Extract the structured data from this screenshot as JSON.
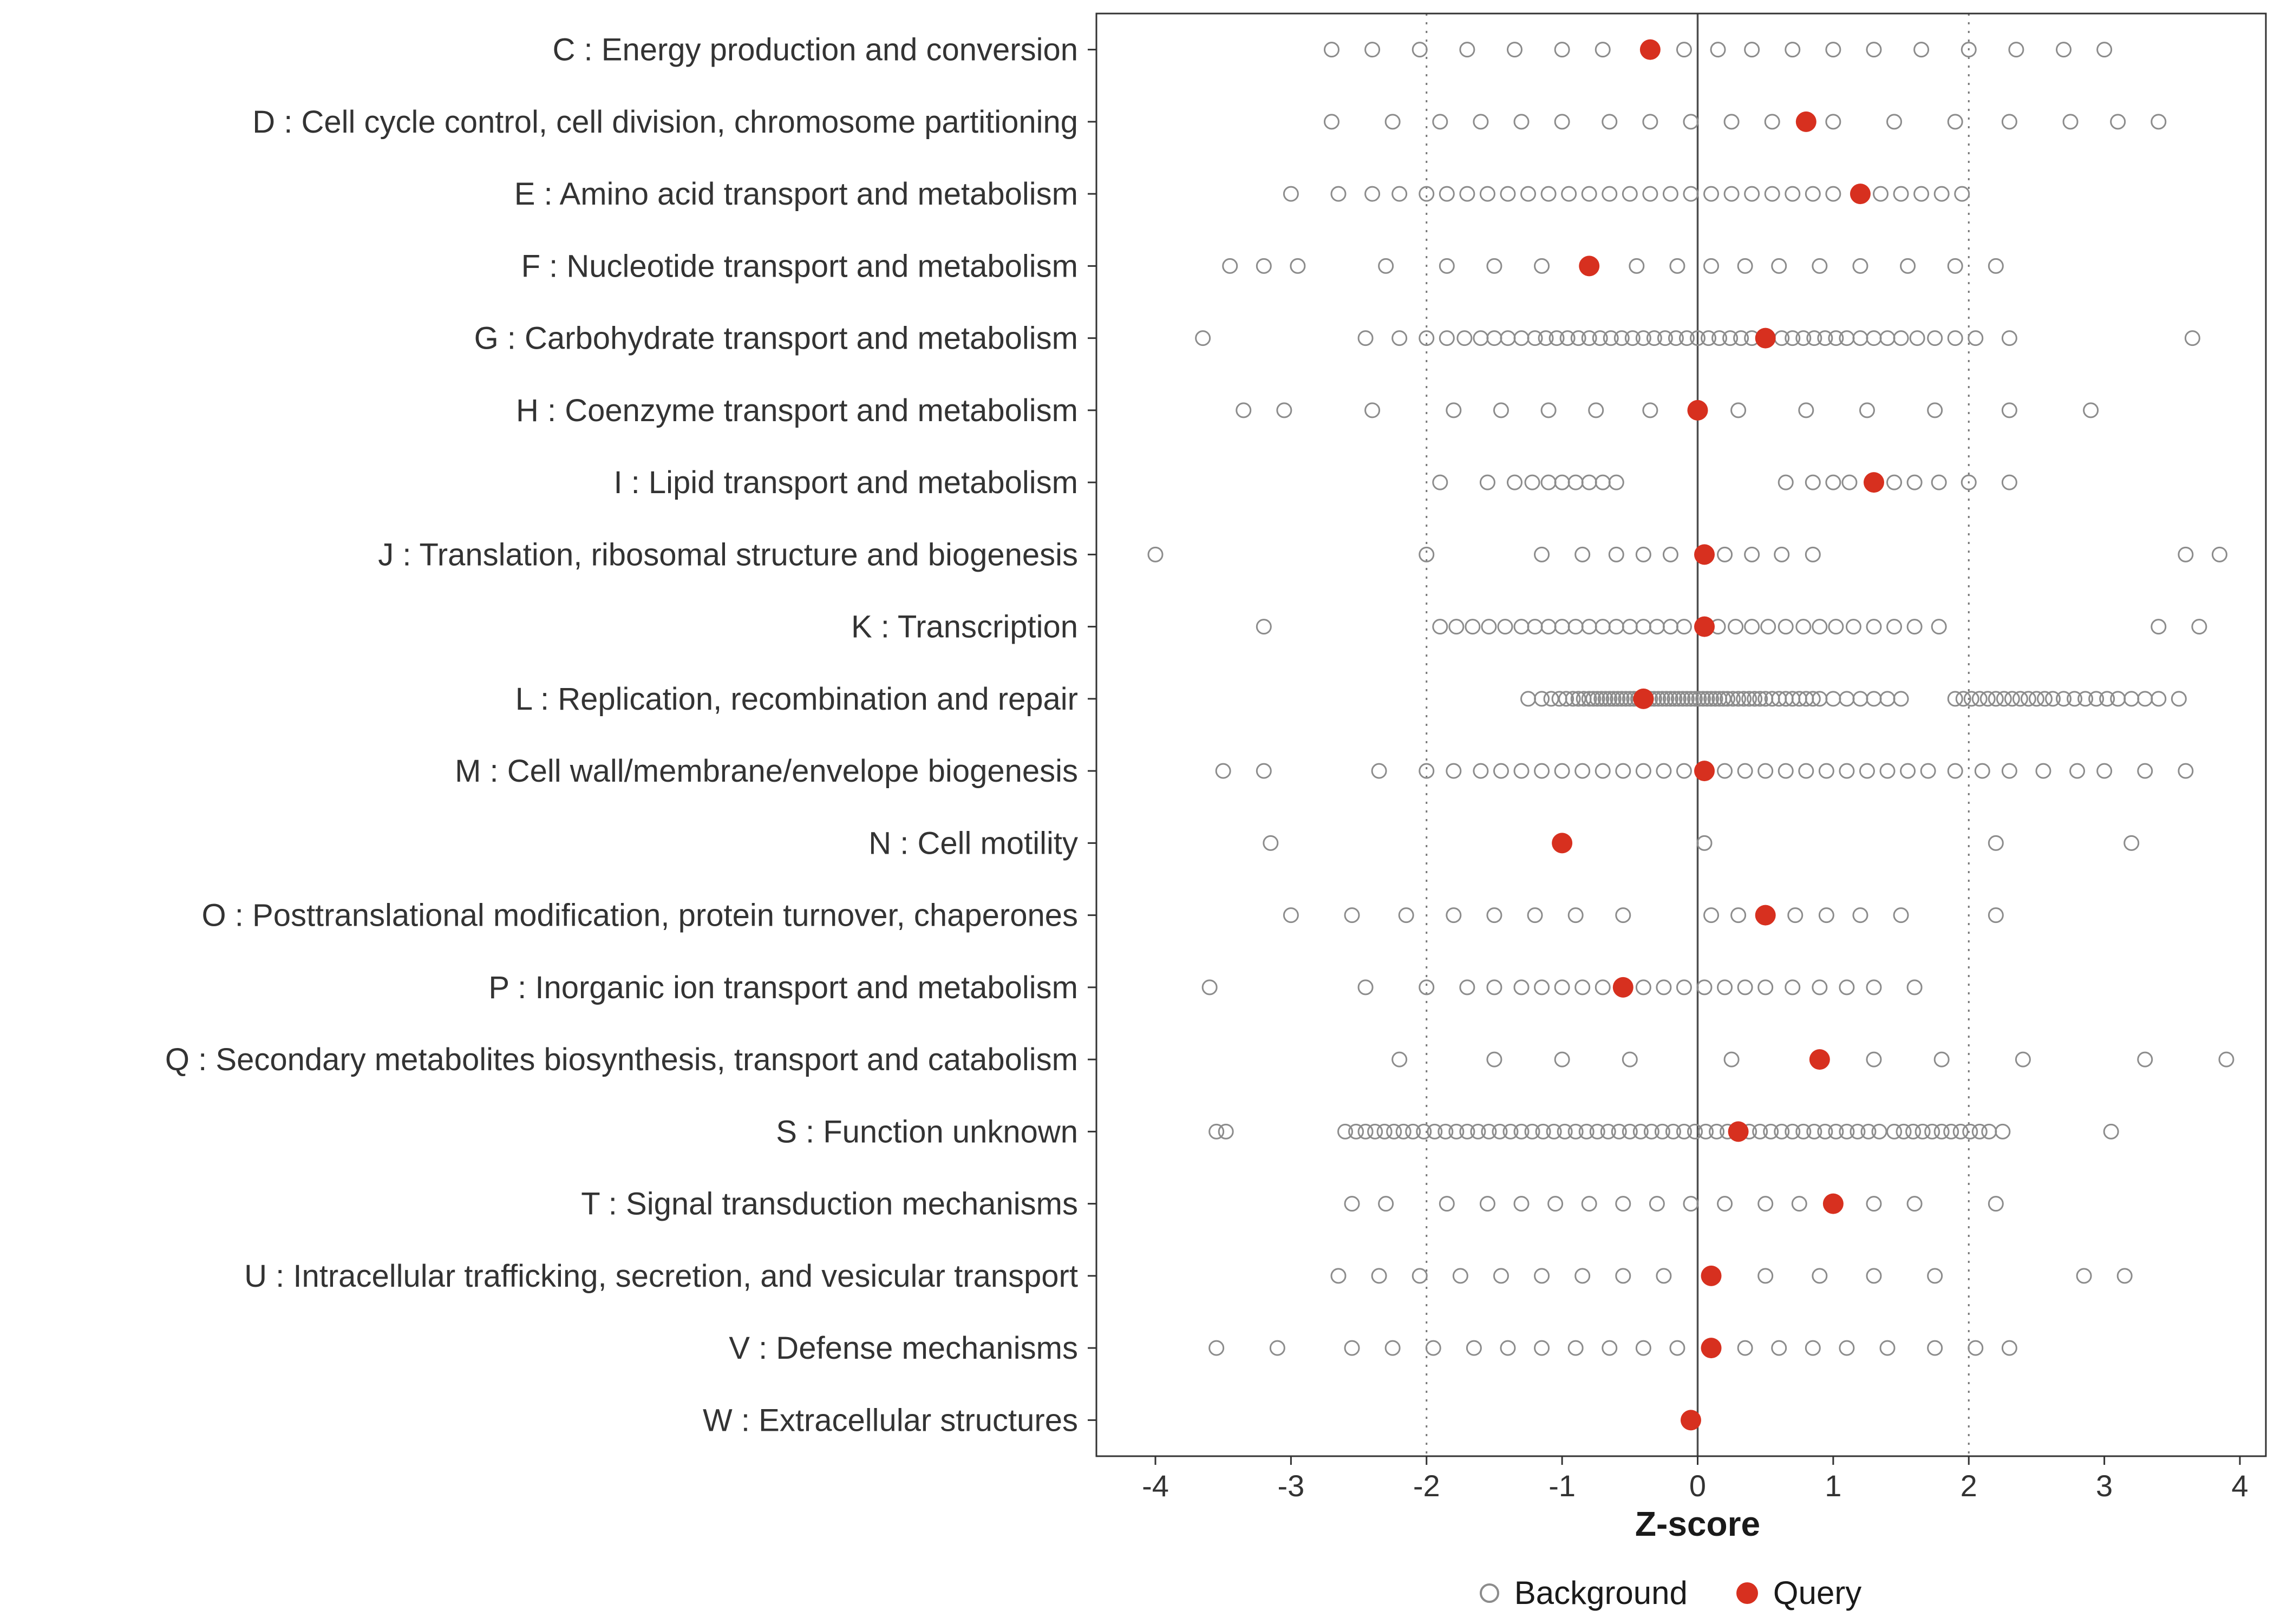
{
  "chart_data": {
    "type": "scatter",
    "title": "",
    "xlabel": "Z-score",
    "ylabel": "",
    "xlim": [
      -4.35,
      4.35
    ],
    "x_ticks": [
      -4,
      -3,
      -2,
      -1,
      0,
      1,
      2,
      3,
      4
    ],
    "reference_lines": {
      "solid": [
        0
      ],
      "dotted": [
        -2,
        2
      ]
    },
    "grid": "off",
    "legend_position": "bottom",
    "legend_labels": {
      "background": "Background",
      "query": "Query"
    },
    "colors": {
      "background": "#8c8c8c",
      "query": "#d7301f",
      "axis_text": "#333333",
      "panel_border": "#333333"
    },
    "categories": [
      {
        "label": "C : Energy production and conversion",
        "query": -0.35,
        "background": [
          -2.7,
          -2.4,
          -2.05,
          -1.7,
          -1.35,
          -1.0,
          -0.7,
          -0.1,
          0.15,
          0.4,
          0.7,
          1.0,
          1.3,
          1.65,
          2.0,
          2.35,
          2.7,
          3.0
        ]
      },
      {
        "label": "D : Cell cycle control, cell division, chromosome partitioning",
        "query": 0.8,
        "background": [
          -2.7,
          -2.25,
          -1.9,
          -1.6,
          -1.3,
          -1.0,
          -0.65,
          -0.35,
          -0.05,
          0.25,
          0.55,
          1.0,
          1.45,
          1.9,
          2.3,
          2.75,
          3.1,
          3.4
        ]
      },
      {
        "label": "E : Amino acid transport and metabolism",
        "query": 1.2,
        "background": [
          -3.0,
          -2.65,
          -2.4,
          -2.2,
          -2.0,
          -1.85,
          -1.7,
          -1.55,
          -1.4,
          -1.25,
          -1.1,
          -0.95,
          -0.8,
          -0.65,
          -0.5,
          -0.35,
          -0.2,
          -0.05,
          0.1,
          0.25,
          0.4,
          0.55,
          0.7,
          0.85,
          1.0,
          1.35,
          1.5,
          1.65,
          1.8,
          1.95
        ]
      },
      {
        "label": "F : Nucleotide transport and metabolism",
        "query": -0.8,
        "background": [
          -3.45,
          -3.2,
          -2.95,
          -2.3,
          -1.85,
          -1.5,
          -1.15,
          -0.45,
          -0.15,
          0.1,
          0.35,
          0.6,
          0.9,
          1.2,
          1.55,
          1.9,
          2.2
        ]
      },
      {
        "label": "G : Carbohydrate transport and metabolism",
        "query": 0.5,
        "background": [
          -3.65,
          -2.45,
          -2.2,
          -2.0,
          -1.85,
          -1.72,
          -1.6,
          -1.5,
          -1.4,
          -1.3,
          -1.2,
          -1.12,
          -1.04,
          -0.96,
          -0.88,
          -0.8,
          -0.72,
          -0.64,
          -0.56,
          -0.48,
          -0.4,
          -0.32,
          -0.24,
          -0.16,
          -0.08,
          0.0,
          0.08,
          0.16,
          0.24,
          0.32,
          0.4,
          0.62,
          0.7,
          0.78,
          0.86,
          0.94,
          1.02,
          1.1,
          1.2,
          1.3,
          1.4,
          1.5,
          1.62,
          1.75,
          1.9,
          2.05,
          2.3,
          3.65
        ]
      },
      {
        "label": "H : Coenzyme transport and metabolism",
        "query": 0.0,
        "background": [
          -3.35,
          -3.05,
          -2.4,
          -1.8,
          -1.45,
          -1.1,
          -0.75,
          -0.35,
          0.3,
          0.8,
          1.25,
          1.75,
          2.3,
          2.9
        ]
      },
      {
        "label": "I : Lipid transport and metabolism",
        "query": 1.3,
        "background": [
          -1.9,
          -1.55,
          -1.35,
          -1.22,
          -1.1,
          -1.0,
          -0.9,
          -0.8,
          -0.7,
          -0.6,
          0.65,
          0.85,
          1.0,
          1.12,
          1.45,
          1.6,
          1.78,
          2.0,
          2.3
        ]
      },
      {
        "label": "J : Translation, ribosomal structure and biogenesis",
        "query": 0.05,
        "background": [
          -4.0,
          -2.0,
          -1.15,
          -0.85,
          -0.6,
          -0.4,
          -0.2,
          0.2,
          0.4,
          0.62,
          0.85,
          3.6,
          3.85
        ]
      },
      {
        "label": "K : Transcription",
        "query": 0.05,
        "background": [
          -3.2,
          -1.9,
          -1.78,
          -1.66,
          -1.54,
          -1.42,
          -1.3,
          -1.2,
          -1.1,
          -1.0,
          -0.9,
          -0.8,
          -0.7,
          -0.6,
          -0.5,
          -0.4,
          -0.3,
          -0.2,
          -0.1,
          0.15,
          0.28,
          0.4,
          0.52,
          0.65,
          0.78,
          0.9,
          1.02,
          1.15,
          1.3,
          1.45,
          1.6,
          1.78,
          3.4,
          3.7
        ]
      },
      {
        "label": "L : Replication, recombination and repair",
        "query": -0.4,
        "background": [
          -1.25,
          -1.15,
          -1.08,
          -1.02,
          -0.97,
          -0.92,
          -0.88,
          -0.84,
          -0.8,
          -0.77,
          -0.74,
          -0.71,
          -0.68,
          -0.65,
          -0.62,
          -0.59,
          -0.56,
          -0.53,
          -0.5,
          -0.47,
          -0.44,
          -0.41,
          -0.38,
          -0.35,
          -0.32,
          -0.29,
          -0.26,
          -0.23,
          -0.2,
          -0.17,
          -0.14,
          -0.11,
          -0.08,
          -0.05,
          -0.02,
          0.01,
          0.04,
          0.07,
          0.1,
          0.13,
          0.16,
          0.19,
          0.22,
          0.26,
          0.3,
          0.34,
          0.38,
          0.42,
          0.46,
          0.5,
          0.55,
          0.6,
          0.65,
          0.7,
          0.75,
          0.8,
          0.85,
          0.9,
          1.0,
          1.1,
          1.2,
          1.3,
          1.4,
          1.5,
          1.9,
          1.96,
          2.02,
          2.08,
          2.14,
          2.2,
          2.26,
          2.32,
          2.38,
          2.44,
          2.5,
          2.56,
          2.62,
          2.7,
          2.78,
          2.86,
          2.94,
          3.02,
          3.1,
          3.2,
          3.3,
          3.4,
          3.55
        ]
      },
      {
        "label": "M : Cell wall/membrane/envelope biogenesis",
        "query": 0.05,
        "background": [
          -3.5,
          -3.2,
          -2.35,
          -2.0,
          -1.8,
          -1.6,
          -1.45,
          -1.3,
          -1.15,
          -1.0,
          -0.85,
          -0.7,
          -0.55,
          -0.4,
          -0.25,
          -0.1,
          0.2,
          0.35,
          0.5,
          0.65,
          0.8,
          0.95,
          1.1,
          1.25,
          1.4,
          1.55,
          1.7,
          1.9,
          2.1,
          2.3,
          2.55,
          2.8,
          3.0,
          3.3,
          3.6
        ]
      },
      {
        "label": "N : Cell motility",
        "query": -1.0,
        "background": [
          -3.15,
          0.05,
          2.2,
          3.2
        ]
      },
      {
        "label": "O : Posttranslational modification, protein turnover, chaperones",
        "query": 0.5,
        "background": [
          -3.0,
          -2.55,
          -2.15,
          -1.8,
          -1.5,
          -1.2,
          -0.9,
          -0.55,
          0.1,
          0.3,
          0.72,
          0.95,
          1.2,
          1.5,
          2.2
        ]
      },
      {
        "label": "P : Inorganic ion transport and metabolism",
        "query": -0.55,
        "background": [
          -3.6,
          -2.45,
          -2.0,
          -1.7,
          -1.5,
          -1.3,
          -1.15,
          -1.0,
          -0.85,
          -0.7,
          -0.4,
          -0.25,
          -0.1,
          0.05,
          0.2,
          0.35,
          0.5,
          0.7,
          0.9,
          1.1,
          1.3,
          1.6
        ]
      },
      {
        "label": "Q : Secondary metabolites biosynthesis, transport and catabolism",
        "query": 0.9,
        "background": [
          -2.2,
          -1.5,
          -1.0,
          -0.5,
          0.25,
          1.3,
          1.8,
          2.4,
          3.3,
          3.9
        ]
      },
      {
        "label": "S : Function unknown",
        "query": 0.3,
        "background": [
          -3.55,
          -3.48,
          -2.6,
          -2.52,
          -2.45,
          -2.38,
          -2.31,
          -2.24,
          -2.17,
          -2.1,
          -2.02,
          -1.94,
          -1.86,
          -1.78,
          -1.7,
          -1.62,
          -1.54,
          -1.46,
          -1.38,
          -1.3,
          -1.22,
          -1.14,
          -1.06,
          -0.98,
          -0.9,
          -0.82,
          -0.74,
          -0.66,
          -0.58,
          -0.5,
          -0.42,
          -0.34,
          -0.26,
          -0.18,
          -0.1,
          -0.02,
          0.06,
          0.14,
          0.22,
          0.38,
          0.46,
          0.54,
          0.62,
          0.7,
          0.78,
          0.86,
          0.94,
          1.02,
          1.1,
          1.18,
          1.26,
          1.34,
          1.45,
          1.52,
          1.59,
          1.66,
          1.73,
          1.8,
          1.87,
          1.94,
          2.01,
          2.08,
          2.15,
          2.25,
          3.05
        ]
      },
      {
        "label": "T : Signal transduction mechanisms",
        "query": 1.0,
        "background": [
          -2.55,
          -2.3,
          -1.85,
          -1.55,
          -1.3,
          -1.05,
          -0.8,
          -0.55,
          -0.3,
          -0.05,
          0.2,
          0.5,
          0.75,
          1.3,
          1.6,
          2.2
        ]
      },
      {
        "label": "U : Intracellular trafficking, secretion, and vesicular transport",
        "query": 0.1,
        "background": [
          -2.65,
          -2.35,
          -2.05,
          -1.75,
          -1.45,
          -1.15,
          -0.85,
          -0.55,
          -0.25,
          0.5,
          0.9,
          1.3,
          1.75,
          2.85,
          3.15
        ]
      },
      {
        "label": "V : Defense mechanisms",
        "query": 0.1,
        "background": [
          -3.55,
          -3.1,
          -2.55,
          -2.25,
          -1.95,
          -1.65,
          -1.4,
          -1.15,
          -0.9,
          -0.65,
          -0.4,
          -0.15,
          0.35,
          0.6,
          0.85,
          1.1,
          1.4,
          1.75,
          2.05,
          2.3
        ]
      },
      {
        "label": "W : Extracellular structures",
        "query": -0.05,
        "background": []
      }
    ]
  }
}
